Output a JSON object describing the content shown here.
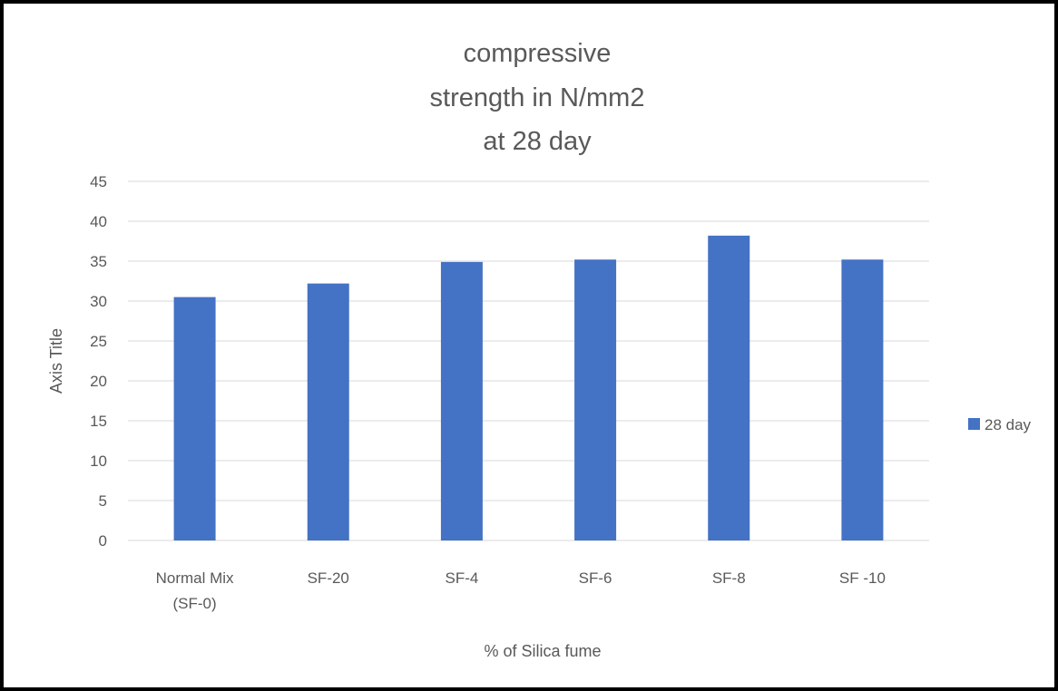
{
  "chart_data": {
    "type": "bar",
    "title_lines": [
      "compressive",
      "strength in N/mm2",
      "at  28 day"
    ],
    "xlabel": "% of Silica fume",
    "ylabel": "Axis Title",
    "categories": [
      [
        "Normal  Mix",
        "(SF-0)"
      ],
      [
        "SF-20"
      ],
      [
        "SF-4"
      ],
      [
        "SF-6"
      ],
      [
        "SF-8"
      ],
      [
        "SF -10"
      ]
    ],
    "series": [
      {
        "name": "28 day",
        "values": [
          30.5,
          32.2,
          34.9,
          35.2,
          38.2,
          35.2
        ],
        "color": "#4472c4"
      }
    ],
    "ylim": [
      0,
      45
    ],
    "yticks": [
      0,
      5,
      10,
      15,
      20,
      25,
      30,
      35,
      40,
      45
    ],
    "grid": true,
    "legend": "right"
  }
}
